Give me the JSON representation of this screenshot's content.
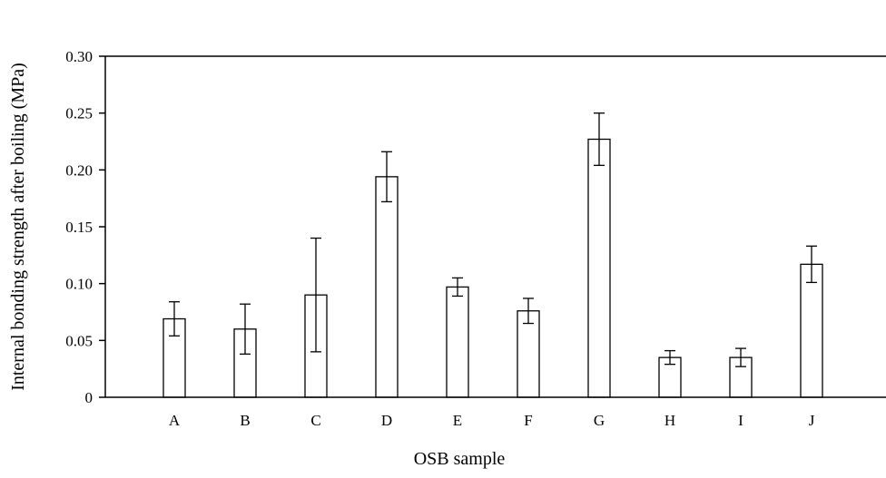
{
  "chart_data": {
    "type": "bar",
    "title": "",
    "xlabel": "OSB sample",
    "ylabel": "Internal bonding strength after boiling (MPa)",
    "categories": [
      "A",
      "B",
      "C",
      "D",
      "E",
      "F",
      "G",
      "H",
      "I",
      "J"
    ],
    "values": [
      0.069,
      0.06,
      0.09,
      0.194,
      0.097,
      0.076,
      0.227,
      0.035,
      0.035,
      0.117
    ],
    "error_bars": [
      0.015,
      0.022,
      0.05,
      0.022,
      0.008,
      0.011,
      0.023,
      0.006,
      0.008,
      0.016
    ],
    "ylim": [
      0,
      0.3
    ],
    "yticks": [
      0,
      0.05,
      0.1,
      0.15,
      0.2,
      0.25,
      0.3
    ],
    "ytick_labels": [
      "0",
      "0.05",
      "0.10",
      "0.15",
      "0.20",
      "0.25",
      "0.30"
    ],
    "grid": false,
    "legend": "none",
    "bar_fill": "#ffffff",
    "bar_stroke": "#000000"
  }
}
